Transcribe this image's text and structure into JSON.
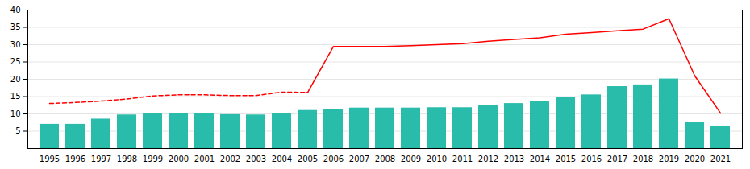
{
  "chart_data": {
    "type": "bar",
    "categories": [
      "1995",
      "1996",
      "1997",
      "1998",
      "1999",
      "2000",
      "2001",
      "2002",
      "2003",
      "2004",
      "2005",
      "2006",
      "2007",
      "2008",
      "2009",
      "2010",
      "2011",
      "2012",
      "2013",
      "2014",
      "2015",
      "2016",
      "2017",
      "2018",
      "2019",
      "2020",
      "2021"
    ],
    "series": [
      {
        "type": "bar",
        "color": "#2abcaa",
        "values": [
          7.0,
          7.0,
          8.5,
          9.7,
          10.0,
          10.2,
          10.0,
          9.8,
          9.7,
          10.0,
          11.0,
          11.2,
          11.7,
          11.7,
          11.7,
          11.8,
          11.8,
          12.5,
          13.0,
          13.5,
          14.7,
          15.5,
          17.9,
          18.4,
          20.1,
          7.6,
          6.4
        ]
      },
      {
        "type": "line",
        "color": "#ff0000",
        "line_style": "dashed",
        "values": [
          13.0,
          13.3,
          13.7,
          14.3,
          15.2,
          15.5,
          15.5,
          15.3,
          15.3,
          16.3,
          16.2,
          null,
          null,
          null,
          null,
          null,
          null,
          null,
          null,
          null,
          null,
          null,
          null,
          null,
          null,
          null,
          null
        ]
      },
      {
        "type": "line",
        "color": "#ff0000",
        "line_style": "solid",
        "values": [
          null,
          null,
          null,
          null,
          null,
          null,
          null,
          null,
          null,
          null,
          16.2,
          29.5,
          29.5,
          29.5,
          29.7,
          30.0,
          30.3,
          31.0,
          31.5,
          32.0,
          33.0,
          33.5,
          34.0,
          34.5,
          37.5,
          21.0,
          10.2
        ]
      }
    ],
    "ylim": [
      0,
      40
    ],
    "yticks": [
      5,
      10,
      15,
      20,
      25,
      30,
      35,
      40
    ],
    "grid": true
  }
}
